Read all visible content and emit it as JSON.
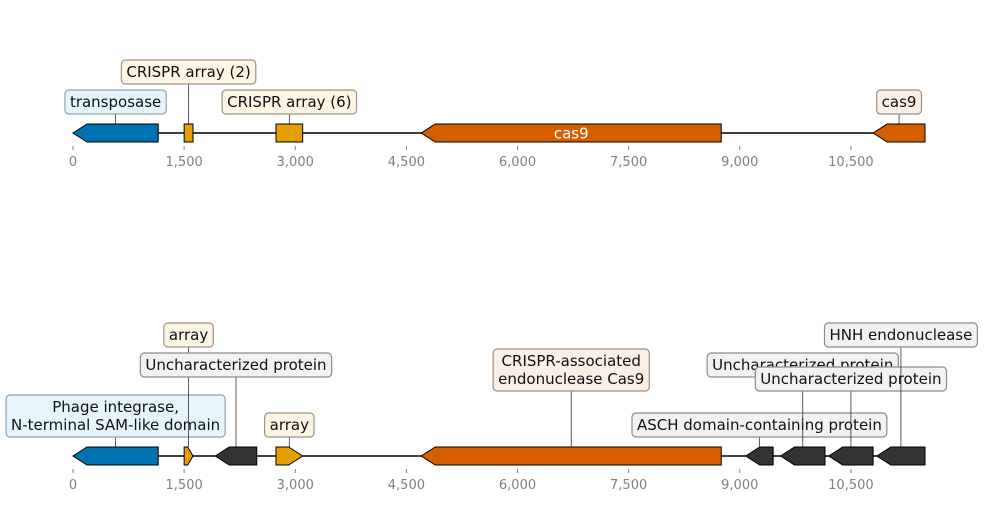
{
  "colors": {
    "transposase": "#0072b2",
    "crispr": "#e69f00",
    "cas9": "#d55e00",
    "other": "#333333"
  },
  "panels": [
    {
      "axis_ticks": [
        "0",
        "1,500",
        "3,000",
        "4,500",
        "6,000",
        "7,500",
        "9,000",
        "10,500"
      ],
      "axis_values": [
        0,
        1500,
        3000,
        4500,
        6000,
        7500,
        9000,
        10500
      ],
      "x_range": [
        0,
        11500
      ],
      "features": [
        {
          "start": 0,
          "end": 1150,
          "strand": -1,
          "kind": "transposase",
          "label": "transposase",
          "inside": false,
          "label_level": 1
        },
        {
          "start": 1500,
          "end": 1620,
          "strand": 0,
          "kind": "crispr",
          "label": "CRISPR array (2)",
          "inside": false,
          "label_level": 2
        },
        {
          "start": 2740,
          "end": 3100,
          "strand": 0,
          "kind": "crispr",
          "label": "CRISPR array (6)",
          "inside": false,
          "label_level": 1
        },
        {
          "start": 4700,
          "end": 8750,
          "strand": -1,
          "kind": "cas9",
          "label": "cas9",
          "inside": true,
          "label_level": 0
        },
        {
          "start": 10800,
          "end": 11500,
          "strand": -1,
          "kind": "cas9",
          "label": "cas9",
          "inside": false,
          "label_level": 1
        }
      ]
    },
    {
      "axis_ticks": [
        "0",
        "1,500",
        "3,000",
        "4,500",
        "6,000",
        "7,500",
        "9,000",
        "10,500"
      ],
      "axis_values": [
        0,
        1500,
        3000,
        4500,
        6000,
        7500,
        9000,
        10500
      ],
      "x_range": [
        0,
        11500
      ],
      "features": [
        {
          "start": 0,
          "end": 1150,
          "strand": -1,
          "kind": "transposase",
          "label": "Phage integrase,\nN-terminal SAM-like domain",
          "inside": false,
          "label_level": 1
        },
        {
          "start": 1500,
          "end": 1620,
          "strand": 1,
          "kind": "crispr",
          "label": "array",
          "inside": false,
          "label_level": 4
        },
        {
          "start": 1920,
          "end": 2480,
          "strand": -1,
          "kind": "other",
          "label": "Uncharacterized protein",
          "inside": false,
          "label_level": 3
        },
        {
          "start": 2740,
          "end": 3100,
          "strand": 1,
          "kind": "crispr",
          "label": "array",
          "inside": false,
          "label_level": 1
        },
        {
          "start": 4700,
          "end": 8750,
          "strand": -1,
          "kind": "cas9",
          "label": "CRISPR-associated\nendonuclease Cas9",
          "inside": false,
          "label_level": 2
        },
        {
          "start": 9080,
          "end": 9450,
          "strand": -1,
          "kind": "other",
          "label": "ASCH domain-containing protein",
          "inside": false,
          "label_level": 1
        },
        {
          "start": 9550,
          "end": 10150,
          "strand": -1,
          "kind": "other",
          "label": "Uncharacterized protein",
          "inside": false,
          "label_level": 3
        },
        {
          "start": 10200,
          "end": 10800,
          "strand": -1,
          "kind": "other",
          "label": "Uncharacterized protein",
          "inside": false,
          "label_level": 2
        },
        {
          "start": 10850,
          "end": 11500,
          "strand": -1,
          "kind": "other",
          "label": "HNH endonuclease",
          "inside": false,
          "label_level": 4
        }
      ]
    }
  ]
}
